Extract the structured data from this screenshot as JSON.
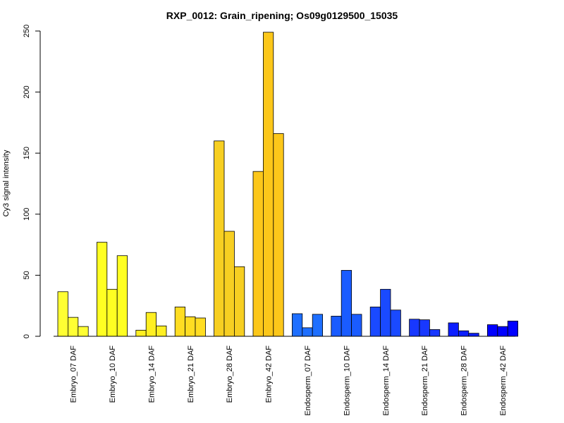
{
  "chart_data": {
    "type": "bar",
    "title": "RXP_0012: Grain_ripening; Os09g0129500_15035",
    "xlabel": "",
    "ylabel": "Cy3 signal intensity",
    "ylim": [
      0,
      250
    ],
    "yticks": [
      0,
      50,
      100,
      150,
      200,
      250
    ],
    "categories": [
      "Embryo_07 DAF",
      "Embryo_10 DAF",
      "Embryo_14 DAF",
      "Embryo_21 DAF",
      "Embryo_28 DAF",
      "Embryo_42 DAF",
      "Endosperm_07 DAF",
      "Endosperm_10 DAF",
      "Endosperm_14 DAF",
      "Endosperm_21 DAF",
      "Endosperm_28 DAF",
      "Endosperm_42 DAF"
    ],
    "values": [
      [
        36.5,
        15.5,
        8.0
      ],
      [
        77.0,
        38.5,
        66.0
      ],
      [
        5.0,
        19.5,
        8.5
      ],
      [
        24.0,
        16.0,
        15.0
      ],
      [
        160.0,
        86.0,
        57.0
      ],
      [
        135.0,
        249.0,
        166.0
      ],
      [
        18.5,
        7.0,
        18.0
      ],
      [
        16.5,
        54.0,
        18.0
      ],
      [
        24.0,
        38.5,
        21.5
      ],
      [
        14.0,
        13.5,
        5.5
      ],
      [
        11.0,
        4.5,
        2.5
      ],
      [
        9.5,
        8.0,
        12.5
      ]
    ],
    "colors": [
      "#FFFF33",
      "#FFFF22",
      "#FFEF22",
      "#FFDD22",
      "#F7CF22",
      "#FCC71A",
      "#1E6FFF",
      "#1A5CFF",
      "#1A4AFF",
      "#1838FF",
      "#0C1EFF",
      "#0000FF"
    ],
    "grid": false,
    "legend": "none"
  }
}
